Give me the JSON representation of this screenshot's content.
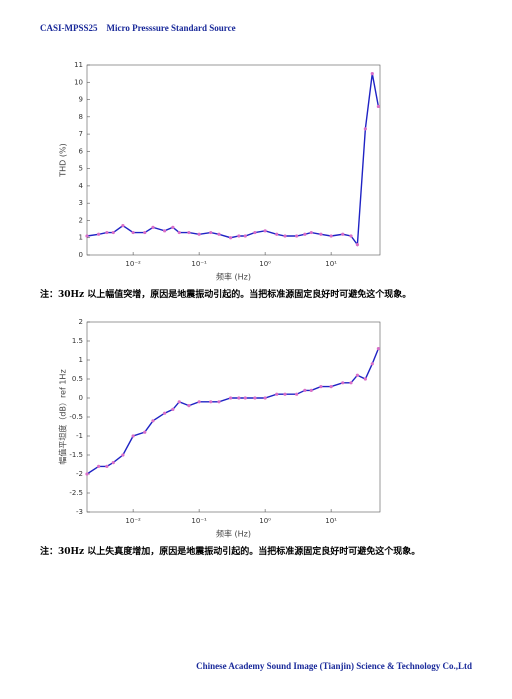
{
  "header": "CASI-MPSS25    Micro Presssure Standard Source",
  "chart_data": [
    {
      "type": "line",
      "xlabel": "频率 (Hz)",
      "ylabel": "THD (%)",
      "log_x": true,
      "xlim": [
        0.002,
        55
      ],
      "xticks": [
        {
          "value": 0.01,
          "label": "10⁻²"
        },
        {
          "value": 0.1,
          "label": "10⁻¹"
        },
        {
          "value": 1,
          "label": "10⁰"
        },
        {
          "value": 10,
          "label": "10¹"
        }
      ],
      "ylim": [
        0,
        11
      ],
      "yticks": [
        0,
        1,
        2,
        3,
        4,
        5,
        6,
        7,
        8,
        9,
        10,
        11
      ],
      "x": [
        0.002,
        0.003,
        0.004,
        0.005,
        0.007,
        0.01,
        0.015,
        0.02,
        0.03,
        0.04,
        0.05,
        0.07,
        0.1,
        0.15,
        0.2,
        0.3,
        0.4,
        0.5,
        0.7,
        1,
        1.5,
        2,
        3,
        4,
        5,
        7,
        10,
        15,
        20,
        25,
        33,
        42,
        52
      ],
      "series": [
        {
          "color": "#1f23c4",
          "marker_color": "#d86fc8",
          "values": [
            1.1,
            1.2,
            1.3,
            1.3,
            1.7,
            1.3,
            1.3,
            1.6,
            1.4,
            1.6,
            1.3,
            1.3,
            1.2,
            1.3,
            1.2,
            1.0,
            1.1,
            1.1,
            1.3,
            1.4,
            1.2,
            1.1,
            1.1,
            1.2,
            1.3,
            1.2,
            1.1,
            1.2,
            1.1,
            0.6,
            7.3,
            10.5,
            8.6
          ]
        }
      ]
    },
    {
      "type": "line",
      "xlabel": "频率 (Hz)",
      "ylabel": "幅值平坦度（dB）ref 1Hz",
      "log_x": true,
      "xlim": [
        0.002,
        55
      ],
      "xticks": [
        {
          "value": 0.01,
          "label": "10⁻²"
        },
        {
          "value": 0.1,
          "label": "10⁻¹"
        },
        {
          "value": 1,
          "label": "10⁰"
        },
        {
          "value": 10,
          "label": "10¹"
        }
      ],
      "ylim": [
        -3,
        2
      ],
      "yticks": [
        -3,
        -2.5,
        -2,
        -1.5,
        -1,
        -0.5,
        0,
        0.5,
        1,
        1.5,
        2
      ],
      "x": [
        0.002,
        0.003,
        0.004,
        0.005,
        0.007,
        0.01,
        0.015,
        0.02,
        0.03,
        0.04,
        0.05,
        0.07,
        0.1,
        0.15,
        0.2,
        0.3,
        0.4,
        0.5,
        0.7,
        1,
        1.5,
        2,
        3,
        4,
        5,
        7,
        10,
        15,
        20,
        25,
        33,
        42,
        52
      ],
      "series": [
        {
          "color": "#1f23c4",
          "marker_color": "#d86fc8",
          "values": [
            -2.0,
            -1.8,
            -1.8,
            -1.7,
            -1.5,
            -1.0,
            -0.9,
            -0.6,
            -0.4,
            -0.3,
            -0.1,
            -0.2,
            -0.1,
            -0.1,
            -0.1,
            0,
            0,
            0,
            0,
            0,
            0.1,
            0.1,
            0.1,
            0.2,
            0.2,
            0.3,
            0.3,
            0.4,
            0.4,
            0.6,
            0.5,
            0.9,
            1.3
          ]
        }
      ]
    }
  ],
  "notes": [
    "注：30Hz 以上幅值突增，原因是地震振动引起的。当把标准源固定良好时可避免这个现象。",
    "注：30Hz 以上失真度增加，原因是地震振动引起的。当把标准源固定良好时可避免这个现象。"
  ],
  "footer": "Chinese Academy Sound Image (Tianjin) Science & Technology Co.,Ltd"
}
